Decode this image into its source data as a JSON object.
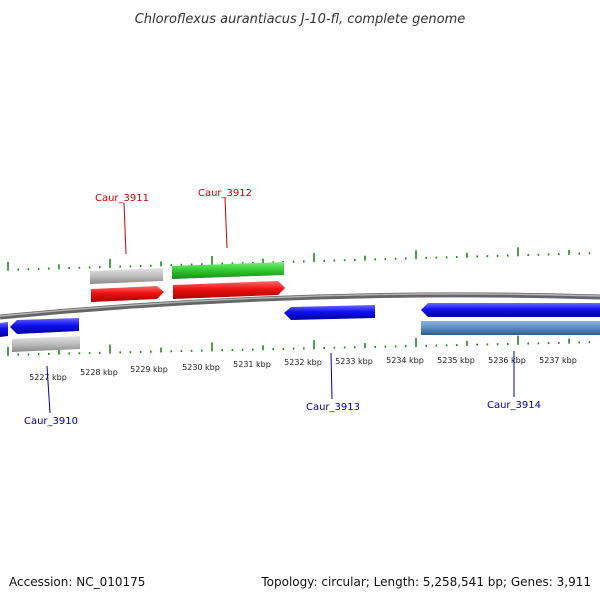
{
  "title": "Chloroflexus aurantiacus J-10-fl, complete genome",
  "footer": {
    "accession": "Accession: NC_010175",
    "summary": "Topology: circular; Length: 5,258,541 bp; Genes: 3,911"
  },
  "colors": {
    "red_label": "#cc0000",
    "blue_label": "#0000aa",
    "tick_green": "#228822",
    "forward_cds": "#ee1111",
    "reverse_cds": "#1111ee",
    "gene_gray": "#bbbbbb",
    "rna_green": "#33cc33",
    "steel_blue": "#5b8bbf",
    "backbone": "#888888"
  },
  "scale_ticks": [
    "5227 kbp",
    "5228 kbp",
    "5229 kbp",
    "5230 kbp",
    "5231 kbp",
    "5232 kbp",
    "5233 kbp",
    "5234 kbp",
    "5235 kbp",
    "5236 kbp",
    "5237 kbp"
  ],
  "gene_labels": {
    "caur_3910": "Caur_3910",
    "caur_3911": "Caur_3911",
    "caur_3912": "Caur_3912",
    "caur_3913": "Caur_3913",
    "caur_3914": "Caur_3914"
  }
}
